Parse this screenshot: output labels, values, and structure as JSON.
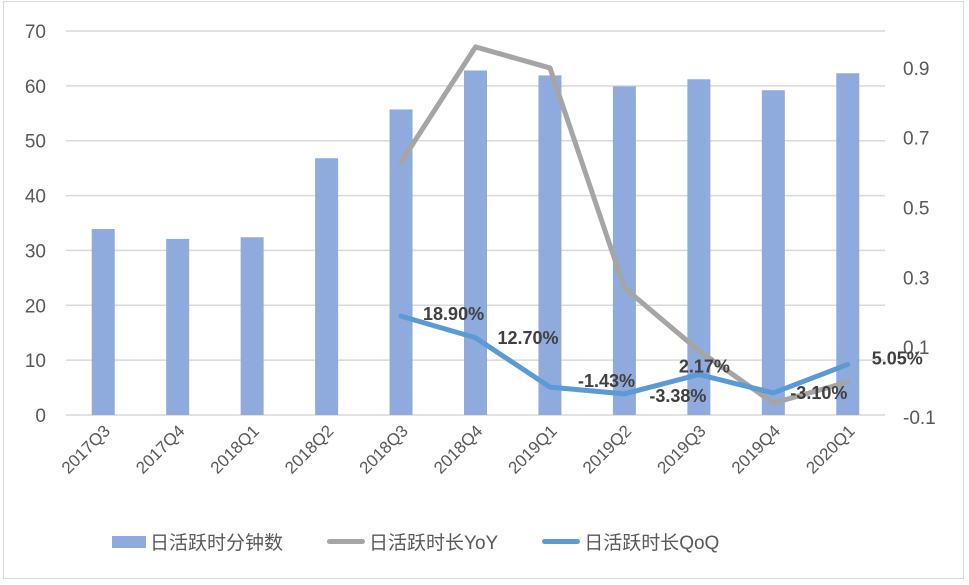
{
  "chart_data": {
    "type": "bar+line",
    "title": "",
    "categories": [
      "2017Q3",
      "2017Q4",
      "2018Q1",
      "2018Q2",
      "2018Q3",
      "2018Q4",
      "2019Q1",
      "2019Q2",
      "2019Q3",
      "2019Q4",
      "2020Q1"
    ],
    "series": [
      {
        "name": "日活跃时分钟数",
        "type": "bar",
        "axis": "left",
        "color": "#8faadc",
        "values": [
          33.9,
          32.1,
          32.4,
          46.8,
          55.7,
          62.8,
          61.9,
          59.9,
          61.2,
          59.2,
          62.3
        ]
      },
      {
        "name": "日活跃时长YoY",
        "type": "line",
        "axis": "right",
        "color": "#a5a5a5",
        "values": [
          null,
          null,
          null,
          null,
          0.63,
          0.96,
          0.9,
          0.27,
          0.09,
          -0.06,
          0.0
        ]
      },
      {
        "name": "日活跃时长QoQ",
        "type": "line",
        "axis": "right",
        "color": "#5b9bd5",
        "values": [
          null,
          null,
          null,
          null,
          0.189,
          0.127,
          -0.0143,
          -0.0338,
          0.0217,
          -0.031,
          0.0505
        ],
        "data_labels": [
          null,
          null,
          null,
          null,
          "18.90%",
          "12.70%",
          "-1.43%",
          "-3.38%",
          "2.17%",
          "-3.10%",
          "5.05%"
        ]
      }
    ],
    "left_axis": {
      "min": 0,
      "max": 70,
      "ticks": [
        "0",
        "10",
        "20",
        "30",
        "40",
        "50",
        "60",
        "70"
      ]
    },
    "right_axis": {
      "min": -0.1,
      "max": 1.0,
      "ticks": [
        "-0.1",
        "0.1",
        "0.3",
        "0.5",
        "0.7",
        "0.9"
      ]
    },
    "xlabel": "",
    "ylabel": "",
    "grid": true,
    "legend_position": "bottom"
  },
  "legend": {
    "items": [
      {
        "label": "日活跃时分钟数",
        "color": "#8faadc",
        "kind": "bar"
      },
      {
        "label": "日活跃时长YoY",
        "color": "#a5a5a5",
        "kind": "line"
      },
      {
        "label": "日活跃时长QoQ",
        "color": "#5b9bd5",
        "kind": "line"
      }
    ]
  }
}
